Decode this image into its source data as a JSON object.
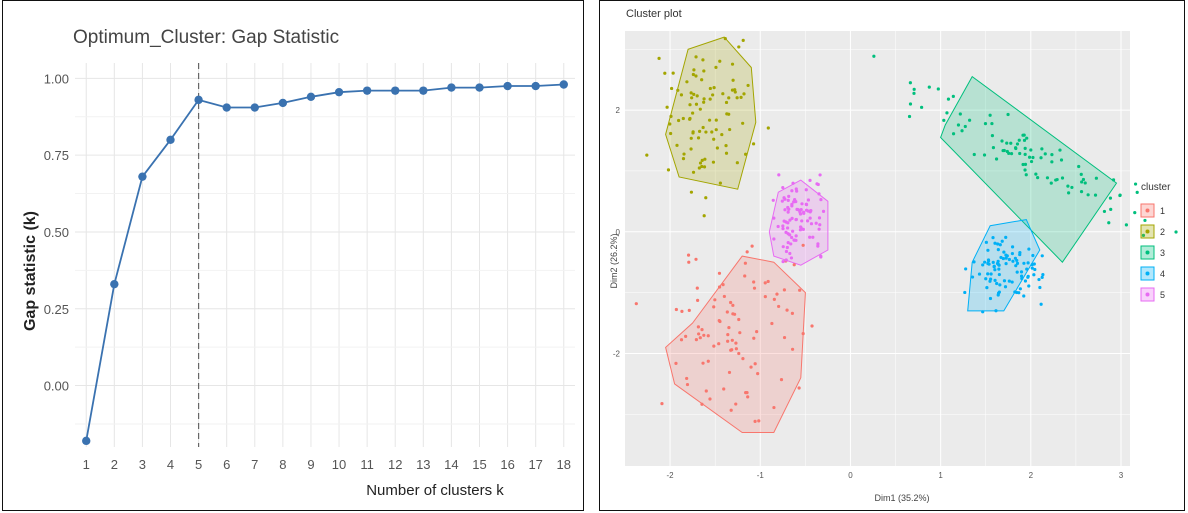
{
  "chart_data": [
    {
      "type": "line",
      "title": "Optimum_Cluster: Gap Statistic",
      "xlabel": "Number of clusters k",
      "ylabel": "Gap statistic (k)",
      "x": [
        1,
        2,
        3,
        4,
        5,
        6,
        7,
        8,
        9,
        10,
        11,
        12,
        13,
        14,
        15,
        16,
        17,
        18
      ],
      "x_ticks": [
        "1",
        "2",
        "3",
        "4",
        "5",
        "6",
        "7",
        "8",
        "9",
        "10",
        "11",
        "12",
        "13",
        "14",
        "15",
        "16",
        "17",
        "18"
      ],
      "y_ticks": [
        "0.00",
        "0.25",
        "0.50",
        "0.75",
        "1.00"
      ],
      "y_tick_values": [
        0,
        0.25,
        0.5,
        0.75,
        1.0
      ],
      "ylim": [
        -0.2,
        1.05
      ],
      "series": [
        {
          "values": [
            -0.18,
            0.33,
            0.68,
            0.8,
            0.93,
            0.905,
            0.905,
            0.92,
            0.94,
            0.955,
            0.96,
            0.96,
            0.96,
            0.97,
            0.97,
            0.975,
            0.975,
            0.98
          ]
        }
      ],
      "optimal_k": 5,
      "grid": true,
      "colors": {
        "line": "#3a72b0",
        "vline": "#666666",
        "grid": "#e6e6e6"
      }
    },
    {
      "type": "scatter",
      "title": "Cluster plot",
      "xlabel": "Dim1 (35.2%)",
      "ylabel": "Dim2 (26.2%)",
      "x_ticks": [
        "-2",
        "-1",
        "0",
        "1",
        "2",
        "3"
      ],
      "x_tick_values": [
        -2,
        -1,
        0,
        1,
        2,
        3
      ],
      "y_ticks": [
        "-2",
        "0",
        "2"
      ],
      "y_tick_values": [
        -2,
        0,
        2
      ],
      "xlim": [
        -2.5,
        3.1
      ],
      "ylim": [
        -3.85,
        3.3
      ],
      "legend_title": "cluster",
      "legend_position": "right",
      "grid": true,
      "colors": {
        "panel": "#ebebeb",
        "grid": "#ffffff"
      },
      "clusters": [
        {
          "name": "1",
          "color": "#f8766d",
          "center": [
            -1.15,
            -1.6
          ],
          "spread": [
            0.42,
            0.68
          ],
          "hull": [
            [
              -1.75,
              -1.5
            ],
            [
              -1.2,
              -0.4
            ],
            [
              -0.85,
              -0.5
            ],
            [
              -0.5,
              -1.0
            ],
            [
              -0.55,
              -2.4
            ],
            [
              -0.85,
              -3.3
            ],
            [
              -1.2,
              -3.3
            ],
            [
              -1.95,
              -2.5
            ],
            [
              -2.05,
              -1.9
            ]
          ]
        },
        {
          "name": "2",
          "color": "#a3a500",
          "center": [
            -1.55,
            1.9
          ],
          "spread": [
            0.26,
            0.55
          ],
          "hull": [
            [
              -2.05,
              1.6
            ],
            [
              -1.8,
              3.0
            ],
            [
              -1.4,
              3.2
            ],
            [
              -1.1,
              2.7
            ],
            [
              -1.05,
              1.8
            ],
            [
              -1.25,
              0.7
            ],
            [
              -1.9,
              0.9
            ]
          ]
        },
        {
          "name": "3",
          "color": "#00bf7d",
          "center": [
            1.95,
            1.3
          ],
          "spread": [
            0.45,
            0.32
          ],
          "hull": [
            [
              1.05,
              1.75
            ],
            [
              1.35,
              2.55
            ],
            [
              2.95,
              0.8
            ],
            [
              2.35,
              -0.5
            ],
            [
              1.0,
              1.55
            ]
          ]
        },
        {
          "name": "4",
          "color": "#00b0f6",
          "center": [
            1.75,
            -0.6
          ],
          "spread": [
            0.2,
            0.28
          ],
          "hull": [
            [
              1.35,
              -0.5
            ],
            [
              1.55,
              0.1
            ],
            [
              1.95,
              0.2
            ],
            [
              2.1,
              -0.3
            ],
            [
              1.7,
              -1.3
            ],
            [
              1.3,
              -1.3
            ]
          ]
        },
        {
          "name": "5",
          "color": "#e76bf3",
          "center": [
            -0.55,
            0.2
          ],
          "spread": [
            0.14,
            0.32
          ],
          "hull": [
            [
              -0.9,
              0.0
            ],
            [
              -0.8,
              0.65
            ],
            [
              -0.55,
              0.85
            ],
            [
              -0.25,
              0.5
            ],
            [
              -0.25,
              -0.3
            ],
            [
              -0.55,
              -0.55
            ],
            [
              -0.85,
              -0.4
            ]
          ]
        }
      ]
    }
  ]
}
